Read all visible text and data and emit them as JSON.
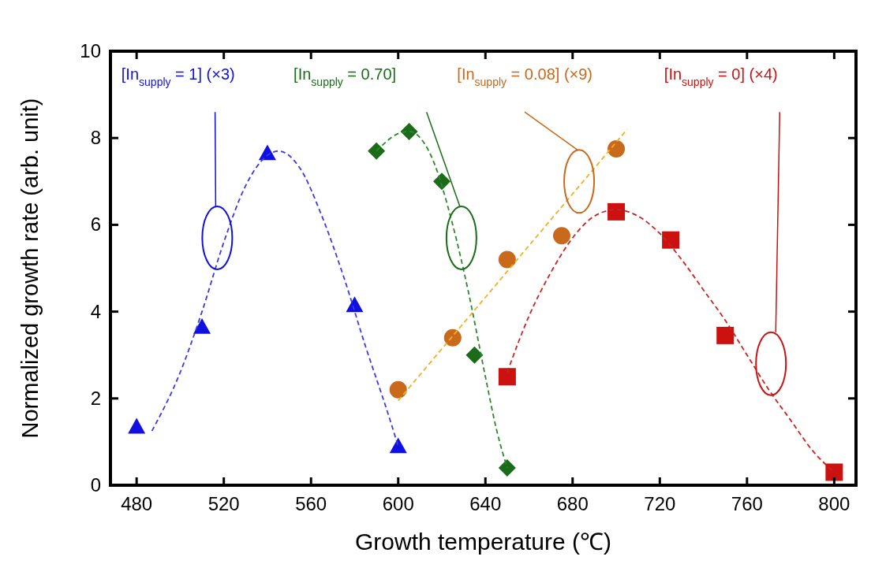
{
  "chart_data": {
    "type": "scatter",
    "xlabel": "Growth temperature (℃)",
    "ylabel": "Normalized growth rate (arb. unit)",
    "xlim": [
      468,
      810
    ],
    "ylim": [
      0,
      10
    ],
    "xticks": [
      480,
      520,
      560,
      600,
      640,
      680,
      720,
      760,
      800
    ],
    "yticks": [
      0,
      2,
      4,
      6,
      8,
      10
    ],
    "grid": false,
    "series": [
      {
        "name": "[In$_{supply}$ = 1] (×3)",
        "color": "#1010e0",
        "marker": "triangle",
        "x": [
          480,
          510,
          540,
          580,
          600
        ],
        "values": [
          1.35,
          3.65,
          7.65,
          4.15,
          0.9
        ]
      },
      {
        "name": "[In$_{supply}$ = 0.70]",
        "color": "#1a6b1a",
        "marker": "diamond",
        "x": [
          590,
          605,
          620,
          635,
          650
        ],
        "values": [
          7.7,
          8.15,
          7.0,
          3.0,
          0.4
        ]
      },
      {
        "name": "[In$_{supply}$ = 0.08] (×9)",
        "color": "#c8691c",
        "marker": "circle",
        "x": [
          600,
          625,
          650,
          675,
          700
        ],
        "values": [
          2.2,
          3.4,
          5.2,
          5.75,
          7.75
        ]
      },
      {
        "name": "[In$_{supply}$ = 0] (×4)",
        "color": "#cc1111",
        "marker": "square",
        "x": [
          650,
          700,
          725,
          750,
          800
        ],
        "values": [
          2.5,
          6.3,
          5.65,
          3.45,
          0.3
        ]
      },
      {
        "type": "line",
        "color": "#3a3ae8",
        "line_style": "dashed",
        "marker": "none",
        "x": [
          487,
          500,
          510,
          520,
          530,
          540,
          545,
          555,
          565,
          575,
          585,
          595,
          600
        ],
        "values": [
          1.25,
          2.6,
          4.0,
          5.6,
          6.9,
          7.6,
          7.7,
          7.3,
          6.2,
          4.8,
          3.2,
          1.7,
          0.9
        ]
      },
      {
        "type": "line",
        "color": "#2a8a2a",
        "line_style": "dashed",
        "marker": "none",
        "x": [
          590,
          600,
          605,
          615,
          625,
          632,
          640,
          645,
          650
        ],
        "values": [
          7.7,
          8.1,
          8.15,
          7.6,
          6.0,
          4.5,
          2.5,
          1.3,
          0.4
        ]
      },
      {
        "type": "line",
        "color": "#f0b020",
        "line_style": "dashed",
        "marker": "none",
        "x": [
          600,
          705
        ],
        "values": [
          1.95,
          8.2
        ]
      },
      {
        "type": "line",
        "color": "#cc2222",
        "line_style": "dashed",
        "marker": "none",
        "x": [
          650,
          660,
          670,
          680,
          690,
          700,
          710,
          720,
          730,
          740,
          750,
          760,
          770,
          780,
          790,
          800
        ],
        "values": [
          2.6,
          3.9,
          4.9,
          5.7,
          6.2,
          6.35,
          6.2,
          5.8,
          5.2,
          4.5,
          3.8,
          3.0,
          2.2,
          1.5,
          0.8,
          0.3
        ]
      }
    ]
  }
}
